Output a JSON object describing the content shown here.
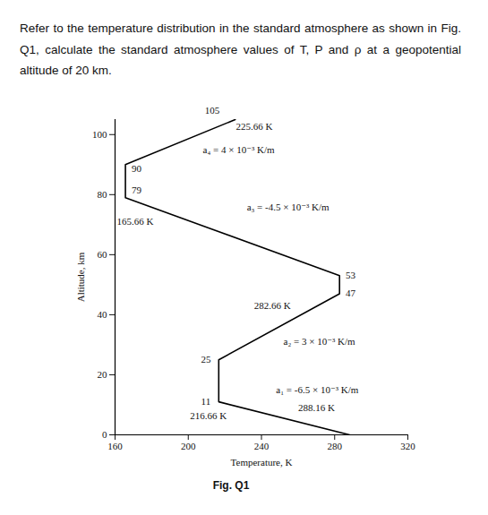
{
  "chart_data": {
    "type": "line",
    "title": "Refer to the temperature distribution in the standard atmosphere as shown in Fig. Q1, calculate the standard atmosphere values of T, P and ρ at a geopotential altitude of 20 km.",
    "caption": "Fig. Q1",
    "xlabel": "Temperature, K",
    "ylabel": "Altitude, km",
    "x": [
      288.16,
      216.66,
      216.66,
      282.66,
      282.66,
      165.66,
      165.66,
      225.66
    ],
    "values": [
      0,
      11,
      25,
      47,
      53,
      79,
      90,
      105
    ],
    "color": "#000000",
    "xlim": [
      160,
      320
    ],
    "xticks": [
      160,
      200,
      240,
      280,
      320
    ],
    "ylim": [
      0,
      105
    ],
    "yticks": [
      0,
      20,
      40,
      60,
      80,
      100
    ],
    "grid": false,
    "annotations": [
      {
        "text": "105",
        "x": 209,
        "y": 108
      },
      {
        "text": "225.66 K",
        "x": 226,
        "y": 102.7
      },
      {
        "text": "a₄ = 4 × 10⁻³ K/m",
        "x": 208,
        "y": 95
      },
      {
        "text": "90",
        "x": 169,
        "y": 88.5
      },
      {
        "text": "79",
        "x": 169,
        "y": 81.5
      },
      {
        "text": "165.66 K",
        "x": 161,
        "y": 71
      },
      {
        "text": "a₃ = -4.5 × 10⁻³ K/m",
        "x": 232,
        "y": 75.7
      },
      {
        "text": "53",
        "x": 286,
        "y": 53
      },
      {
        "text": "47",
        "x": 286,
        "y": 47
      },
      {
        "text": "282.66 K",
        "x": 236,
        "y": 43
      },
      {
        "text": "a₂ = 3 × 10⁻³ K/m",
        "x": 252,
        "y": 31
      },
      {
        "text": "25",
        "x": 207,
        "y": 25
      },
      {
        "text": "11",
        "x": 207,
        "y": 11
      },
      {
        "text": "a₁ = -6.5 × 10⁻³ K/m",
        "x": 248,
        "y": 15
      },
      {
        "text": "216.66 K",
        "x": 201,
        "y": 6.2
      },
      {
        "text": "288.16 K",
        "x": 260,
        "y": 9
      }
    ]
  }
}
